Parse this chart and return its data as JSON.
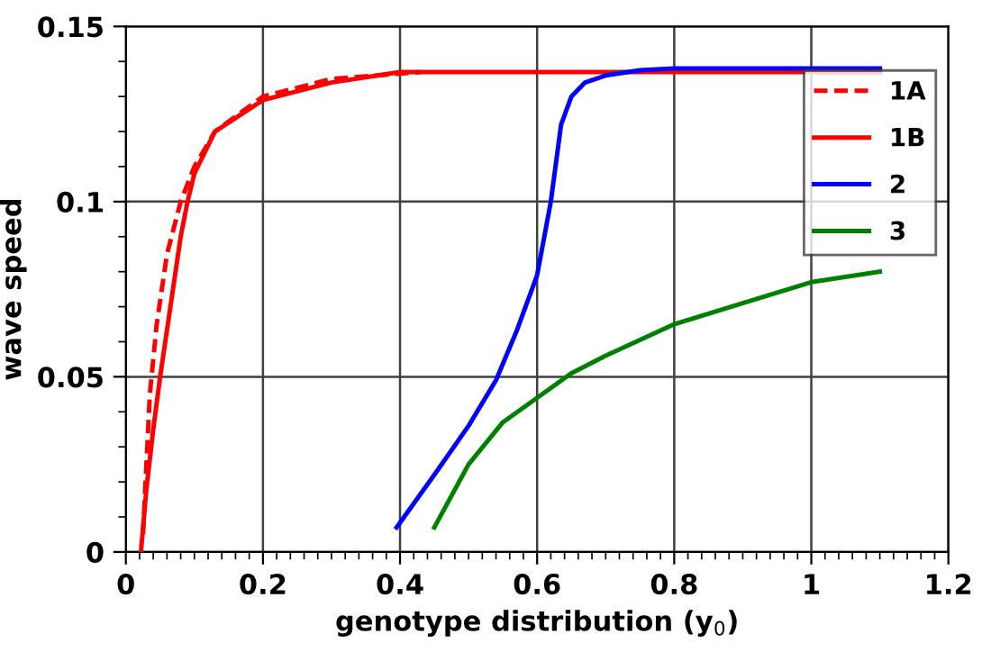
{
  "chart_data": {
    "type": "line",
    "xlabel": "genotype distribution (y$_{0}$)",
    "ylabel": "wave speed",
    "xlim": [
      0,
      1.2
    ],
    "ylim": [
      0,
      0.15
    ],
    "xticks": [
      0,
      {
        "value": 0.02,
        "label": null
      },
      {
        "value": 0.04,
        "label": null
      },
      {
        "value": 0.06,
        "label": null
      },
      {
        "value": 0.08,
        "label": null
      },
      0.2,
      {
        "value": 0.12,
        "label": null
      },
      {
        "value": 0.14,
        "label": null
      },
      {
        "value": 0.16,
        "label": null
      },
      {
        "value": 0.18,
        "label": null
      },
      0.4,
      {
        "value": 0.22,
        "label": null
      },
      {
        "value": 0.24,
        "label": null
      },
      {
        "value": 0.26,
        "label": null
      },
      {
        "value": 0.28,
        "label": null
      },
      0.6,
      {
        "value": 0.32,
        "label": null
      },
      {
        "value": 0.34,
        "label": null
      },
      {
        "value": 0.36,
        "label": null
      },
      {
        "value": 0.38,
        "label": null
      },
      0.8,
      {
        "value": 0.42,
        "label": null
      },
      {
        "value": 0.44,
        "label": null
      },
      {
        "value": 0.46,
        "label": null
      },
      {
        "value": 0.48,
        "label": null
      },
      1,
      {
        "value": 0.52,
        "label": null
      },
      {
        "value": 0.54,
        "label": null
      },
      {
        "value": 0.56,
        "label": null
      },
      {
        "value": 0.58,
        "label": null
      },
      1.2,
      {
        "value": 0.62,
        "label": null
      },
      {
        "value": 0.64,
        "label": null
      },
      {
        "value": 0.66,
        "label": null
      },
      {
        "value": 0.68,
        "label": null
      },
      {
        "value": 0.72,
        "label": null
      },
      {
        "value": 0.74,
        "label": null
      },
      {
        "value": 0.76,
        "label": null
      },
      {
        "value": 0.78,
        "label": null
      },
      {
        "value": 0.82,
        "label": null
      },
      {
        "value": 0.84,
        "label": null
      },
      {
        "value": 0.86,
        "label": null
      },
      {
        "value": 0.88,
        "label": null
      },
      {
        "value": 0.92,
        "label": null
      },
      {
        "value": 0.94,
        "label": null
      },
      {
        "value": 0.96,
        "label": null
      },
      {
        "value": 0.98,
        "label": null
      },
      {
        "value": 1.02,
        "label": null
      },
      {
        "value": 1.04,
        "label": null
      },
      {
        "value": 1.06,
        "label": null
      },
      {
        "value": 1.08,
        "label": null
      },
      {
        "value": 1.12,
        "label": null
      },
      {
        "value": 1.14,
        "label": null
      },
      {
        "value": 1.16,
        "label": null
      },
      {
        "value": 1.18,
        "label": null
      },
      {
        "value": 0.1,
        "label": null
      },
      {
        "value": 0.3,
        "label": null
      },
      {
        "value": 0.5,
        "label": null
      },
      {
        "value": 0.7,
        "label": null
      },
      {
        "value": 0.9,
        "label": null
      },
      {
        "value": 1.1,
        "label": null
      }
    ],
    "yticks": [
      0,
      {
        "value": 0.01,
        "label": null
      },
      {
        "value": 0.02,
        "label": null
      },
      {
        "value": 0.03,
        "label": null
      },
      {
        "value": 0.04,
        "label": null
      },
      0.05,
      {
        "value": 0.06,
        "label": null
      },
      {
        "value": 0.07,
        "label": null
      },
      {
        "value": 0.08,
        "label": null
      },
      {
        "value": 0.09,
        "label": null
      },
      0.1,
      {
        "value": 0.11,
        "label": null
      },
      {
        "value": 0.12,
        "label": null
      },
      {
        "value": 0.13,
        "label": null
      },
      {
        "value": 0.14,
        "label": null
      },
      0.15
    ],
    "grid": true,
    "legend": "top right",
    "series": [
      {
        "name": "1A",
        "color": "#ff0000",
        "line_style": "dashed",
        "x": [
          0.025,
          0.03,
          0.035,
          0.045,
          0.06,
          0.08,
          0.1,
          0.13,
          0.2,
          0.3,
          0.43
        ],
        "values": [
          0.005,
          0.025,
          0.045,
          0.065,
          0.085,
          0.1,
          0.11,
          0.12,
          0.13,
          0.135,
          0.137
        ]
      },
      {
        "name": "1B",
        "color": "#ff0000",
        "line_style": "solid",
        "x": [
          0.022,
          0.03,
          0.04,
          0.05,
          0.065,
          0.08,
          0.09,
          0.1,
          0.13,
          0.2,
          0.3,
          0.4,
          0.5,
          1.1
        ],
        "values": [
          0,
          0.018,
          0.035,
          0.05,
          0.07,
          0.09,
          0.1,
          0.108,
          0.12,
          0.129,
          0.134,
          0.137,
          0.137,
          0.137
        ]
      },
      {
        "name": "2",
        "color": "#0000ff",
        "line_style": "solid",
        "x": [
          0.395,
          0.45,
          0.5,
          0.54,
          0.57,
          0.6,
          0.62,
          0.635,
          0.65,
          0.67,
          0.7,
          0.75,
          0.8,
          1.1
        ],
        "values": [
          0.007,
          0.022,
          0.036,
          0.049,
          0.063,
          0.079,
          0.1,
          0.122,
          0.13,
          0.134,
          0.136,
          0.1375,
          0.138,
          0.138
        ]
      },
      {
        "name": "3",
        "color": "#008000",
        "line_style": "solid",
        "x": [
          0.45,
          0.5,
          0.55,
          0.6,
          0.65,
          0.7,
          0.8,
          0.9,
          1.0,
          1.1
        ],
        "values": [
          0.007,
          0.025,
          0.037,
          0.044,
          0.051,
          0.056,
          0.065,
          0.071,
          0.077,
          0.08
        ]
      }
    ]
  }
}
